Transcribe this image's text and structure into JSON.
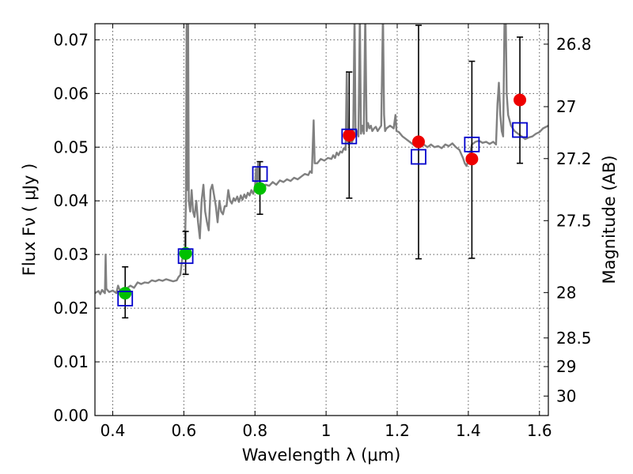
{
  "chart_data": {
    "type": "scatter",
    "xlabel": "Wavelength  λ (μm)",
    "ylabel": "Flux  Fν  ( μJy )",
    "ylabel_right": "Magnitude (AB)",
    "xlim": [
      0.35,
      1.625
    ],
    "ylim": [
      0.0,
      0.073
    ],
    "grid": true,
    "x_ticks": [
      {
        "value": 0.4,
        "label": "0.4"
      },
      {
        "value": 0.6,
        "label": "0.6"
      },
      {
        "value": 0.8,
        "label": "0.8"
      },
      {
        "value": 1.0,
        "label": "1"
      },
      {
        "value": 1.2,
        "label": "1.2"
      },
      {
        "value": 1.4,
        "label": "1.4"
      },
      {
        "value": 1.6,
        "label": "1.6"
      }
    ],
    "y_ticks": [
      {
        "value": 0.0,
        "label": "0.00"
      },
      {
        "value": 0.01,
        "label": "0.01"
      },
      {
        "value": 0.02,
        "label": "0.02"
      },
      {
        "value": 0.03,
        "label": "0.03"
      },
      {
        "value": 0.04,
        "label": "0.04"
      },
      {
        "value": 0.05,
        "label": "0.05"
      },
      {
        "value": 0.06,
        "label": "0.06"
      },
      {
        "value": 0.07,
        "label": "0.07"
      }
    ],
    "mag_ticks": [
      {
        "value": 26.8,
        "label": "26.8"
      },
      {
        "value": 27.0,
        "label": "27"
      },
      {
        "value": 27.2,
        "label": "27.2"
      },
      {
        "value": 27.5,
        "label": "27.5"
      },
      {
        "value": 28.0,
        "label": "28"
      },
      {
        "value": 28.5,
        "label": "28.5"
      },
      {
        "value": 29.0,
        "label": "29"
      },
      {
        "value": 30.0,
        "label": "30"
      }
    ],
    "series": [
      {
        "name": "template spectrum",
        "kind": "line",
        "color": "#808080",
        "points": [
          [
            0.35,
            0.0228
          ],
          [
            0.36,
            0.0232
          ],
          [
            0.365,
            0.0226
          ],
          [
            0.37,
            0.0234
          ],
          [
            0.375,
            0.023
          ],
          [
            0.378,
            0.0228
          ],
          [
            0.38,
            0.03
          ],
          [
            0.382,
            0.0236
          ],
          [
            0.39,
            0.023
          ],
          [
            0.4,
            0.0233
          ],
          [
            0.41,
            0.0228
          ],
          [
            0.415,
            0.0242
          ],
          [
            0.42,
            0.0233
          ],
          [
            0.43,
            0.0235
          ],
          [
            0.44,
            0.0237
          ],
          [
            0.45,
            0.0242
          ],
          [
            0.46,
            0.0238
          ],
          [
            0.47,
            0.0248
          ],
          [
            0.48,
            0.0245
          ],
          [
            0.49,
            0.0248
          ],
          [
            0.5,
            0.0247
          ],
          [
            0.51,
            0.0252
          ],
          [
            0.52,
            0.025
          ],
          [
            0.53,
            0.0253
          ],
          [
            0.54,
            0.0251
          ],
          [
            0.55,
            0.0254
          ],
          [
            0.56,
            0.0252
          ],
          [
            0.57,
            0.025
          ],
          [
            0.58,
            0.0252
          ],
          [
            0.585,
            0.0258
          ],
          [
            0.59,
            0.0262
          ],
          [
            0.595,
            0.029
          ],
          [
            0.6,
            0.03
          ],
          [
            0.603,
            0.031
          ],
          [
            0.606,
            0.04
          ],
          [
            0.608,
            0.075
          ],
          [
            0.61,
            0.042
          ],
          [
            0.612,
            0.075
          ],
          [
            0.614,
            0.04
          ],
          [
            0.618,
            0.038
          ],
          [
            0.622,
            0.042
          ],
          [
            0.626,
            0.038
          ],
          [
            0.63,
            0.037
          ],
          [
            0.635,
            0.04
          ],
          [
            0.64,
            0.036
          ],
          [
            0.645,
            0.033
          ],
          [
            0.65,
            0.04
          ],
          [
            0.655,
            0.043
          ],
          [
            0.66,
            0.038
          ],
          [
            0.665,
            0.036
          ],
          [
            0.67,
            0.0345
          ],
          [
            0.675,
            0.042
          ],
          [
            0.68,
            0.043
          ],
          [
            0.685,
            0.041
          ],
          [
            0.69,
            0.039
          ],
          [
            0.695,
            0.036
          ],
          [
            0.7,
            0.04
          ],
          [
            0.705,
            0.038
          ],
          [
            0.71,
            0.0375
          ],
          [
            0.715,
            0.039
          ],
          [
            0.72,
            0.039
          ],
          [
            0.725,
            0.042
          ],
          [
            0.73,
            0.04
          ],
          [
            0.735,
            0.0395
          ],
          [
            0.74,
            0.0405
          ],
          [
            0.745,
            0.04
          ],
          [
            0.75,
            0.0408
          ],
          [
            0.755,
            0.0398
          ],
          [
            0.76,
            0.041
          ],
          [
            0.765,
            0.0402
          ],
          [
            0.77,
            0.0412
          ],
          [
            0.775,
            0.0405
          ],
          [
            0.78,
            0.0415
          ],
          [
            0.785,
            0.041
          ],
          [
            0.79,
            0.042
          ],
          [
            0.795,
            0.0413
          ],
          [
            0.8,
            0.0425
          ],
          [
            0.803,
            0.046
          ],
          [
            0.806,
            0.043
          ],
          [
            0.809,
            0.047
          ],
          [
            0.812,
            0.044
          ],
          [
            0.815,
            0.043
          ],
          [
            0.82,
            0.042
          ],
          [
            0.83,
            0.043
          ],
          [
            0.84,
            0.0428
          ],
          [
            0.85,
            0.0435
          ],
          [
            0.86,
            0.043
          ],
          [
            0.87,
            0.0438
          ],
          [
            0.88,
            0.0435
          ],
          [
            0.89,
            0.044
          ],
          [
            0.9,
            0.0437
          ],
          [
            0.91,
            0.0443
          ],
          [
            0.92,
            0.044
          ],
          [
            0.93,
            0.0445
          ],
          [
            0.94,
            0.045
          ],
          [
            0.95,
            0.0448
          ],
          [
            0.955,
            0.0455
          ],
          [
            0.96,
            0.0452
          ],
          [
            0.965,
            0.055
          ],
          [
            0.968,
            0.047
          ],
          [
            0.975,
            0.047
          ],
          [
            0.985,
            0.0478
          ],
          [
            0.995,
            0.0475
          ],
          [
            1.005,
            0.048
          ],
          [
            1.015,
            0.0478
          ],
          [
            1.02,
            0.0485
          ],
          [
            1.025,
            0.048
          ],
          [
            1.03,
            0.049
          ],
          [
            1.035,
            0.0485
          ],
          [
            1.04,
            0.0492
          ],
          [
            1.045,
            0.049
          ],
          [
            1.05,
            0.0498
          ],
          [
            1.055,
            0.0495
          ],
          [
            1.058,
            0.064
          ],
          [
            1.061,
            0.051
          ],
          [
            1.064,
            0.0505
          ],
          [
            1.068,
            0.0512
          ],
          [
            1.072,
            0.0508
          ],
          [
            1.076,
            0.0515
          ],
          [
            1.08,
            0.075
          ],
          [
            1.083,
            0.052
          ],
          [
            1.087,
            0.053
          ],
          [
            1.091,
            0.052
          ],
          [
            1.095,
            0.075
          ],
          [
            1.098,
            0.0525
          ],
          [
            1.102,
            0.054
          ],
          [
            1.106,
            0.0525
          ],
          [
            1.11,
            0.075
          ],
          [
            1.114,
            0.053
          ],
          [
            1.118,
            0.0545
          ],
          [
            1.122,
            0.0535
          ],
          [
            1.126,
            0.054
          ],
          [
            1.13,
            0.053
          ],
          [
            1.135,
            0.0535
          ],
          [
            1.14,
            0.0538
          ],
          [
            1.145,
            0.053
          ],
          [
            1.15,
            0.0535
          ],
          [
            1.155,
            0.054
          ],
          [
            1.16,
            0.075
          ],
          [
            1.163,
            0.056
          ],
          [
            1.166,
            0.053
          ],
          [
            1.17,
            0.0535
          ],
          [
            1.18,
            0.054
          ],
          [
            1.19,
            0.0535
          ],
          [
            1.195,
            0.056
          ],
          [
            1.198,
            0.053
          ],
          [
            1.205,
            0.0528
          ],
          [
            1.215,
            0.052
          ],
          [
            1.225,
            0.0515
          ],
          [
            1.235,
            0.051
          ],
          [
            1.245,
            0.0505
          ],
          [
            1.255,
            0.05
          ],
          [
            1.265,
            0.05
          ],
          [
            1.275,
            0.0505
          ],
          [
            1.285,
            0.05
          ],
          [
            1.295,
            0.0505
          ],
          [
            1.305,
            0.05
          ],
          [
            1.315,
            0.0502
          ],
          [
            1.325,
            0.0498
          ],
          [
            1.335,
            0.0505
          ],
          [
            1.345,
            0.0502
          ],
          [
            1.355,
            0.0507
          ],
          [
            1.365,
            0.05
          ],
          [
            1.375,
            0.0495
          ],
          [
            1.385,
            0.048
          ],
          [
            1.39,
            0.047
          ],
          [
            1.395,
            0.0465
          ],
          [
            1.4,
            0.0475
          ],
          [
            1.405,
            0.0488
          ],
          [
            1.41,
            0.0505
          ],
          [
            1.42,
            0.051
          ],
          [
            1.43,
            0.0512
          ],
          [
            1.44,
            0.0508
          ],
          [
            1.45,
            0.051
          ],
          [
            1.46,
            0.0506
          ],
          [
            1.47,
            0.051
          ],
          [
            1.478,
            0.0505
          ],
          [
            1.482,
            0.058
          ],
          [
            1.486,
            0.062
          ],
          [
            1.49,
            0.056
          ],
          [
            1.494,
            0.053
          ],
          [
            1.498,
            0.052
          ],
          [
            1.502,
            0.075
          ],
          [
            1.505,
            0.075
          ],
          [
            1.508,
            0.06
          ],
          [
            1.512,
            0.056
          ],
          [
            1.52,
            0.054
          ],
          [
            1.53,
            0.053
          ],
          [
            1.54,
            0.0525
          ],
          [
            1.55,
            0.052
          ],
          [
            1.56,
            0.0515
          ],
          [
            1.57,
            0.0518
          ],
          [
            1.58,
            0.052
          ],
          [
            1.59,
            0.0525
          ],
          [
            1.6,
            0.0528
          ],
          [
            1.61,
            0.0535
          ],
          [
            1.625,
            0.054
          ]
        ]
      },
      {
        "name": "observed (optical)",
        "kind": "points",
        "marker": "circle",
        "color": "#00c000",
        "points": [
          [
            0.435,
            0.0228
          ],
          [
            0.605,
            0.0302
          ],
          [
            0.814,
            0.0423
          ]
        ]
      },
      {
        "name": "observed (near-IR)",
        "kind": "points",
        "marker": "circle",
        "color": "#ee0000",
        "points": [
          [
            1.065,
            0.0522
          ],
          [
            1.26,
            0.051
          ],
          [
            1.41,
            0.0478
          ],
          [
            1.545,
            0.0588
          ]
        ]
      },
      {
        "name": "error bars",
        "kind": "errorbar",
        "color": "#000000",
        "bars": [
          {
            "x": 0.435,
            "lo": 0.0182,
            "hi": 0.0277
          },
          {
            "x": 0.605,
            "lo": 0.0263,
            "hi": 0.0343
          },
          {
            "x": 0.814,
            "lo": 0.0375,
            "hi": 0.0473
          },
          {
            "x": 1.065,
            "lo": 0.0405,
            "hi": 0.064
          },
          {
            "x": 1.26,
            "lo": 0.0292,
            "hi": 0.0727
          },
          {
            "x": 1.41,
            "lo": 0.0293,
            "hi": 0.066
          },
          {
            "x": 1.545,
            "lo": 0.047,
            "hi": 0.0705
          }
        ]
      },
      {
        "name": "model photometry",
        "kind": "points",
        "marker": "open-square",
        "color": "#0000cc",
        "points": [
          [
            0.435,
            0.0218
          ],
          [
            0.605,
            0.0297
          ],
          [
            0.814,
            0.045
          ],
          [
            1.065,
            0.052
          ],
          [
            1.26,
            0.0482
          ],
          [
            1.41,
            0.0505
          ],
          [
            1.545,
            0.0532
          ]
        ]
      }
    ]
  }
}
